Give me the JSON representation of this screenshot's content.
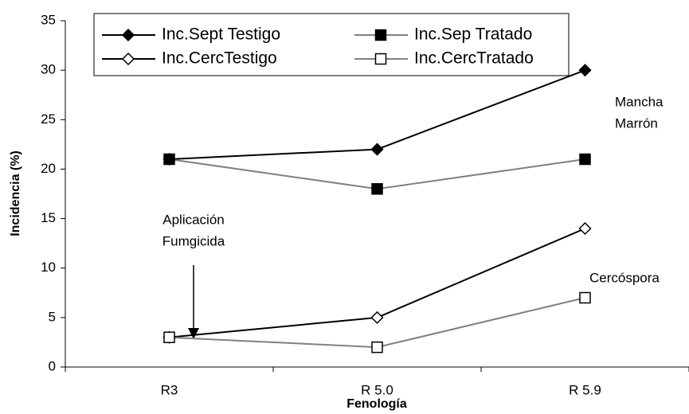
{
  "chart_data": {
    "type": "line",
    "x_label": "Fenología",
    "y_label": "Incidencia (%)",
    "categories": [
      "R3",
      "R 5.0",
      "R 5.9"
    ],
    "series": [
      {
        "name": "Inc.Sept Testigo",
        "color": "#000000",
        "marker": "diamond",
        "marker_fill": "#000000",
        "values": [
          21,
          22,
          30
        ]
      },
      {
        "name": "Inc.Sep Tratado",
        "color": "#808080",
        "marker": "square",
        "marker_fill": "#000000",
        "values": [
          21,
          18,
          21
        ]
      },
      {
        "name": "Inc.CercTestigo",
        "color": "#000000",
        "marker": "diamond",
        "marker_fill": "#ffffff",
        "values": [
          3,
          5,
          14
        ]
      },
      {
        "name": "Inc.CercTratado",
        "color": "#808080",
        "marker": "square",
        "marker_fill": "#ffffff",
        "values": [
          3,
          2,
          7
        ]
      }
    ],
    "ylim": [
      0,
      35
    ],
    "yticks": [
      0,
      5,
      10,
      15,
      20,
      25,
      30,
      35
    ],
    "annotations": [
      [
        "Aplicación",
        "Fumgicida"
      ],
      [
        "Mancha",
        "Marrón"
      ],
      [
        "Cercóspora"
      ]
    ]
  }
}
